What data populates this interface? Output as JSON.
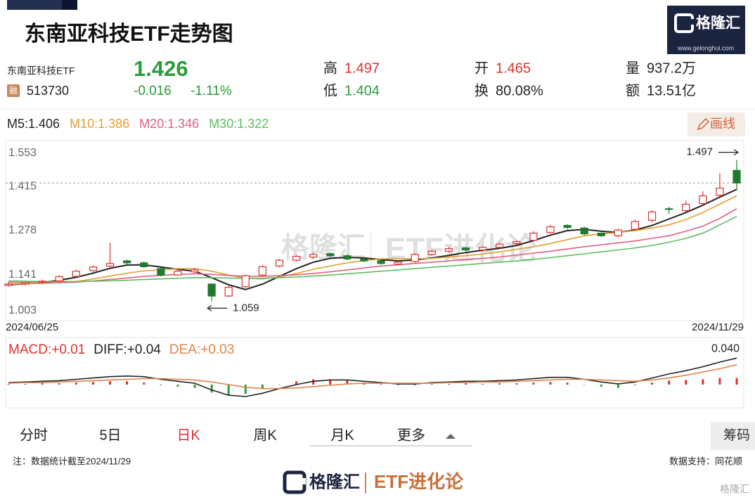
{
  "header": {
    "title": "东南亚科技ETF走势图",
    "logo": "格隆汇",
    "logo_url": "www.gelonghui.com"
  },
  "quote": {
    "name": "东南亚科技ETF",
    "badge": "融",
    "code": "513730",
    "price": 1.426,
    "change": -0.016,
    "change_pct": "-1.11%",
    "color": "#2a9d3a",
    "stats": [
      {
        "label": "高",
        "value": 1.497,
        "color": "#e0302d"
      },
      {
        "label": "低",
        "value": 1.404,
        "color": "#2a9d3a"
      },
      {
        "label": "开",
        "value": 1.465,
        "color": "#e0302d"
      },
      {
        "label": "换",
        "value": "80.08%",
        "color": "#222222"
      },
      {
        "label": "量",
        "value": "937.2万",
        "color": "#222222"
      },
      {
        "label": "额",
        "value": "13.51亿",
        "color": "#222222"
      }
    ]
  },
  "draw_button": "画线",
  "chart_data": [
    {
      "type": "candlestick",
      "categories": [
        "2024/06/25",
        null,
        null,
        null,
        null,
        null,
        null,
        null,
        null,
        null,
        null,
        null,
        null,
        null,
        null,
        null,
        null,
        null,
        null,
        null,
        null,
        null,
        null,
        null,
        null,
        null,
        null,
        null,
        null,
        null,
        null,
        null,
        null,
        null,
        null,
        null,
        null,
        null,
        null,
        null,
        null,
        null,
        null,
        "2024/11/29"
      ],
      "open": [
        1.108,
        1.112,
        1.118,
        1.122,
        1.136,
        1.154,
        1.168,
        1.184,
        1.178,
        1.16,
        1.14,
        1.15,
        1.112,
        1.075,
        1.104,
        1.14,
        1.168,
        1.186,
        1.196,
        1.206,
        1.2,
        1.19,
        1.184,
        1.174,
        1.182,
        1.204,
        1.214,
        1.224,
        1.218,
        1.226,
        1.238,
        1.248,
        1.272,
        1.294,
        1.286,
        1.27,
        1.262,
        1.282,
        1.31,
        1.346,
        1.34,
        1.362,
        1.388,
        1.465
      ],
      "high": [
        1.118,
        1.12,
        1.126,
        1.14,
        1.156,
        1.17,
        1.241,
        1.188,
        1.182,
        1.164,
        1.158,
        1.162,
        1.114,
        1.106,
        1.142,
        1.17,
        1.19,
        1.202,
        1.21,
        1.21,
        1.204,
        1.194,
        1.188,
        1.184,
        1.208,
        1.218,
        1.228,
        1.228,
        1.23,
        1.24,
        1.25,
        1.276,
        1.296,
        1.298,
        1.29,
        1.272,
        1.284,
        1.312,
        1.34,
        1.352,
        1.37,
        1.4,
        1.456,
        1.497
      ],
      "low": [
        1.104,
        1.108,
        1.114,
        1.12,
        1.134,
        1.15,
        1.164,
        1.172,
        1.162,
        1.136,
        1.138,
        1.146,
        1.059,
        1.072,
        1.1,
        1.136,
        1.164,
        1.182,
        1.192,
        1.196,
        1.186,
        1.18,
        1.172,
        1.17,
        1.178,
        1.2,
        1.21,
        1.214,
        1.214,
        1.222,
        1.234,
        1.244,
        1.268,
        1.282,
        1.264,
        1.258,
        1.258,
        1.278,
        1.304,
        1.33,
        1.336,
        1.356,
        1.384,
        1.404
      ],
      "close": [
        1.112,
        1.116,
        1.121,
        1.135,
        1.152,
        1.165,
        1.176,
        1.178,
        1.166,
        1.14,
        1.152,
        1.156,
        1.075,
        1.102,
        1.138,
        1.166,
        1.186,
        1.198,
        1.204,
        1.2,
        1.19,
        1.184,
        1.176,
        1.18,
        1.204,
        1.214,
        1.222,
        1.218,
        1.226,
        1.236,
        1.244,
        1.27,
        1.29,
        1.288,
        1.268,
        1.262,
        1.28,
        1.306,
        1.336,
        1.344,
        1.36,
        1.386,
        1.41,
        1.426
      ],
      "up_color": "#e0302d",
      "down_color": "#1f7a2e",
      "series": [
        {
          "name": "M5:1.406",
          "color": "#222222",
          "values": [
            1.11,
            1.113,
            1.117,
            1.124,
            1.133,
            1.146,
            1.161,
            1.171,
            1.172,
            1.165,
            1.158,
            1.152,
            1.132,
            1.11,
            1.095,
            1.112,
            1.136,
            1.16,
            1.18,
            1.192,
            1.195,
            1.193,
            1.188,
            1.184,
            1.187,
            1.193,
            1.201,
            1.21,
            1.217,
            1.223,
            1.232,
            1.247,
            1.264,
            1.278,
            1.282,
            1.276,
            1.272,
            1.28,
            1.294,
            1.314,
            1.334,
            1.357,
            1.382,
            1.406
          ]
        },
        {
          "name": "M10:1.386",
          "color": "#e0a030",
          "values": [
            1.112,
            1.113,
            1.114,
            1.116,
            1.12,
            1.128,
            1.137,
            1.146,
            1.153,
            1.156,
            1.16,
            1.16,
            1.152,
            1.14,
            1.13,
            1.128,
            1.134,
            1.145,
            1.158,
            1.168,
            1.178,
            1.185,
            1.19,
            1.191,
            1.19,
            1.192,
            1.196,
            1.2,
            1.205,
            1.212,
            1.22,
            1.228,
            1.238,
            1.25,
            1.262,
            1.268,
            1.272,
            1.278,
            1.286,
            1.296,
            1.312,
            1.334,
            1.36,
            1.386
          ]
        },
        {
          "name": "M20:1.346",
          "color": "#e0607e",
          "values": [
            1.118,
            1.117,
            1.116,
            1.116,
            1.118,
            1.122,
            1.126,
            1.131,
            1.136,
            1.139,
            1.142,
            1.144,
            1.142,
            1.139,
            1.136,
            1.136,
            1.138,
            1.141,
            1.145,
            1.15,
            1.156,
            1.162,
            1.168,
            1.172,
            1.176,
            1.18,
            1.184,
            1.188,
            1.192,
            1.196,
            1.202,
            1.208,
            1.214,
            1.221,
            1.228,
            1.234,
            1.24,
            1.246,
            1.254,
            1.262,
            1.276,
            1.292,
            1.316,
            1.346
          ]
        },
        {
          "name": "M30:1.322",
          "color": "#5cbf5c",
          "values": [
            1.122,
            1.121,
            1.12,
            1.12,
            1.12,
            1.121,
            1.122,
            1.124,
            1.126,
            1.128,
            1.13,
            1.132,
            1.132,
            1.131,
            1.13,
            1.13,
            1.132,
            1.134,
            1.137,
            1.14,
            1.144,
            1.148,
            1.152,
            1.156,
            1.16,
            1.164,
            1.168,
            1.172,
            1.176,
            1.18,
            1.184,
            1.189,
            1.194,
            1.2,
            1.206,
            1.212,
            1.218,
            1.224,
            1.232,
            1.242,
            1.254,
            1.27,
            1.296,
            1.322
          ]
        }
      ],
      "ylim": [
        1.003,
        1.553
      ],
      "yticks": [
        1.003,
        1.141,
        1.278,
        1.415,
        1.553
      ],
      "reference_line": {
        "value": 1.426,
        "style": "dashed"
      },
      "annotations": [
        {
          "value": 1.497,
          "arrow": "right"
        },
        {
          "value": 1.059,
          "arrow": "left"
        }
      ],
      "watermark": [
        "格隆汇",
        "ETF进化论"
      ]
    },
    {
      "type": "macd",
      "ylim": [
        -0.035,
        0.069
      ],
      "series": [
        {
          "name": "MACD:+0.01",
          "kind": "bar",
          "color": "#e0302d",
          "down_color": "#2a9d3a",
          "values": [
            0.001,
            0.001,
            0.002,
            0.002,
            0.003,
            0.004,
            0.005,
            0.005,
            0.003,
            -0.001,
            -0.003,
            -0.005,
            -0.012,
            -0.016,
            -0.014,
            -0.007,
            0.0,
            0.005,
            0.008,
            0.008,
            0.006,
            0.003,
            0.001,
            -0.001,
            -0.001,
            0.001,
            0.001,
            0.002,
            0.001,
            0.002,
            0.002,
            0.003,
            0.004,
            0.003,
            0.0,
            -0.003,
            -0.005,
            -0.001,
            0.003,
            0.006,
            0.007,
            0.008,
            0.01,
            0.01
          ]
        },
        {
          "name": "DIFF:+0.04",
          "kind": "line",
          "color": "#222222",
          "values": [
            0.003,
            0.004,
            0.005,
            0.006,
            0.008,
            0.01,
            0.012,
            0.013,
            0.012,
            0.008,
            0.005,
            0.002,
            -0.008,
            -0.016,
            -0.018,
            -0.013,
            -0.006,
            0.0,
            0.005,
            0.007,
            0.007,
            0.005,
            0.003,
            0.001,
            0.001,
            0.003,
            0.004,
            0.005,
            0.005,
            0.006,
            0.007,
            0.009,
            0.011,
            0.011,
            0.008,
            0.004,
            0.001,
            0.004,
            0.01,
            0.016,
            0.021,
            0.027,
            0.034,
            0.04
          ]
        },
        {
          "name": "DEA:+0.03",
          "kind": "line",
          "color": "#e0824a",
          "values": [
            0.002,
            0.003,
            0.003,
            0.004,
            0.005,
            0.006,
            0.007,
            0.008,
            0.009,
            0.009,
            0.008,
            0.007,
            0.004,
            0.0,
            -0.004,
            -0.006,
            -0.006,
            -0.005,
            -0.003,
            -0.001,
            0.001,
            0.002,
            0.002,
            0.002,
            0.002,
            0.002,
            0.003,
            0.003,
            0.004,
            0.004,
            0.005,
            0.006,
            0.007,
            0.008,
            0.008,
            0.007,
            0.006,
            0.005,
            0.007,
            0.01,
            0.014,
            0.019,
            0.024,
            0.03
          ]
        }
      ],
      "max_label": {
        "value": 0.04,
        "label": "0.040"
      }
    }
  ],
  "tabs": [
    {
      "label": "分时"
    },
    {
      "label": "5日"
    },
    {
      "label": "日K",
      "active": true
    },
    {
      "label": "周K"
    },
    {
      "label": "月K"
    },
    {
      "label": "更多"
    }
  ],
  "chips_button": "筹码",
  "footer": {
    "note": "注：数据统计截至2024/11/29",
    "source": "数据支持：同花顺"
  },
  "brand": {
    "logo": "格隆汇",
    "column": "ETF进化论"
  },
  "corner_mark": "格隆汇"
}
